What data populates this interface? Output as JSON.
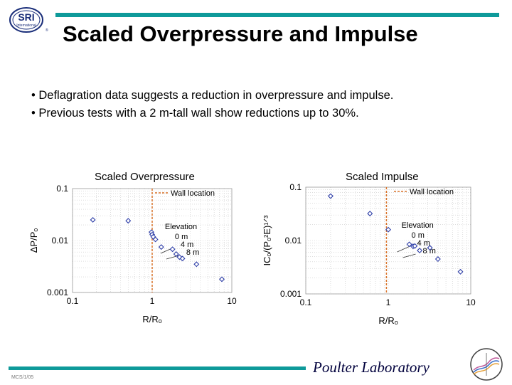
{
  "header": {
    "logo_text": "SRI",
    "logo_subtext": "International",
    "title": "Scaled Overpressure and Impulse"
  },
  "bullets": [
    "Deflagration data suggests a reduction in overpressure and impulse.",
    "Previous tests with a 2 m-tall wall show reductions up to 30%."
  ],
  "colors": {
    "accent_bar": "#0e9a9a",
    "wall_line": "#d9742b",
    "marker": "#2f3fa8"
  },
  "chart_data": [
    {
      "type": "scatter",
      "title": "Scaled Overpressure",
      "xlabel": "R/Rₒ",
      "ylabel": "ΔP/Pₒ",
      "x_scale": "log",
      "y_scale": "log",
      "xlim": [
        0.1,
        10
      ],
      "ylim": [
        0.001,
        0.1
      ],
      "x_ticks": [
        "0.1",
        "1",
        "10"
      ],
      "y_ticks": [
        "0.1",
        "0.01",
        "0.001"
      ],
      "wall_x": 1.0,
      "legend": "Wall location",
      "legend_position": "top-right",
      "annotation": {
        "heading": "Elevation",
        "labels": [
          "0 m",
          "4 m",
          "8 m"
        ]
      },
      "points": [
        {
          "x": 0.18,
          "y": 0.025
        },
        {
          "x": 0.5,
          "y": 0.024
        },
        {
          "x": 0.98,
          "y": 0.0145
        },
        {
          "x": 1.0,
          "y": 0.013
        },
        {
          "x": 1.03,
          "y": 0.0118
        },
        {
          "x": 1.1,
          "y": 0.0105
        },
        {
          "x": 1.3,
          "y": 0.0075
        },
        {
          "x": 1.8,
          "y": 0.0068
        },
        {
          "x": 2.0,
          "y": 0.0055
        },
        {
          "x": 2.2,
          "y": 0.0048
        },
        {
          "x": 2.4,
          "y": 0.0045
        },
        {
          "x": 3.6,
          "y": 0.0035
        },
        {
          "x": 7.5,
          "y": 0.0018
        }
      ]
    },
    {
      "type": "scatter",
      "title": "Scaled Impulse",
      "xlabel": "R/Rₒ",
      "ylabel": "ICₒ/(Pₒ²E)¹ᐟ³",
      "x_scale": "log",
      "y_scale": "log",
      "xlim": [
        0.1,
        10
      ],
      "ylim": [
        0.001,
        0.1
      ],
      "x_ticks": [
        "0.1",
        "1",
        "10"
      ],
      "y_ticks": [
        "0.1",
        "0.01",
        "0.001"
      ],
      "wall_x": 0.95,
      "legend": "Wall location",
      "legend_position": "top-right",
      "annotation": {
        "heading": "Elevation",
        "labels": [
          "0 m",
          "4 m",
          "8 m"
        ]
      },
      "points": [
        {
          "x": 0.2,
          "y": 0.068
        },
        {
          "x": 0.6,
          "y": 0.032
        },
        {
          "x": 1.0,
          "y": 0.016
        },
        {
          "x": 1.8,
          "y": 0.0085
        },
        {
          "x": 2.0,
          "y": 0.0078
        },
        {
          "x": 2.1,
          "y": 0.0079
        },
        {
          "x": 2.4,
          "y": 0.0065
        },
        {
          "x": 3.2,
          "y": 0.0073
        },
        {
          "x": 4.0,
          "y": 0.0045
        },
        {
          "x": 7.5,
          "y": 0.0026
        }
      ]
    }
  ],
  "footer": {
    "lab": "Poulter Laboratory",
    "code": "MCS/1/05"
  }
}
